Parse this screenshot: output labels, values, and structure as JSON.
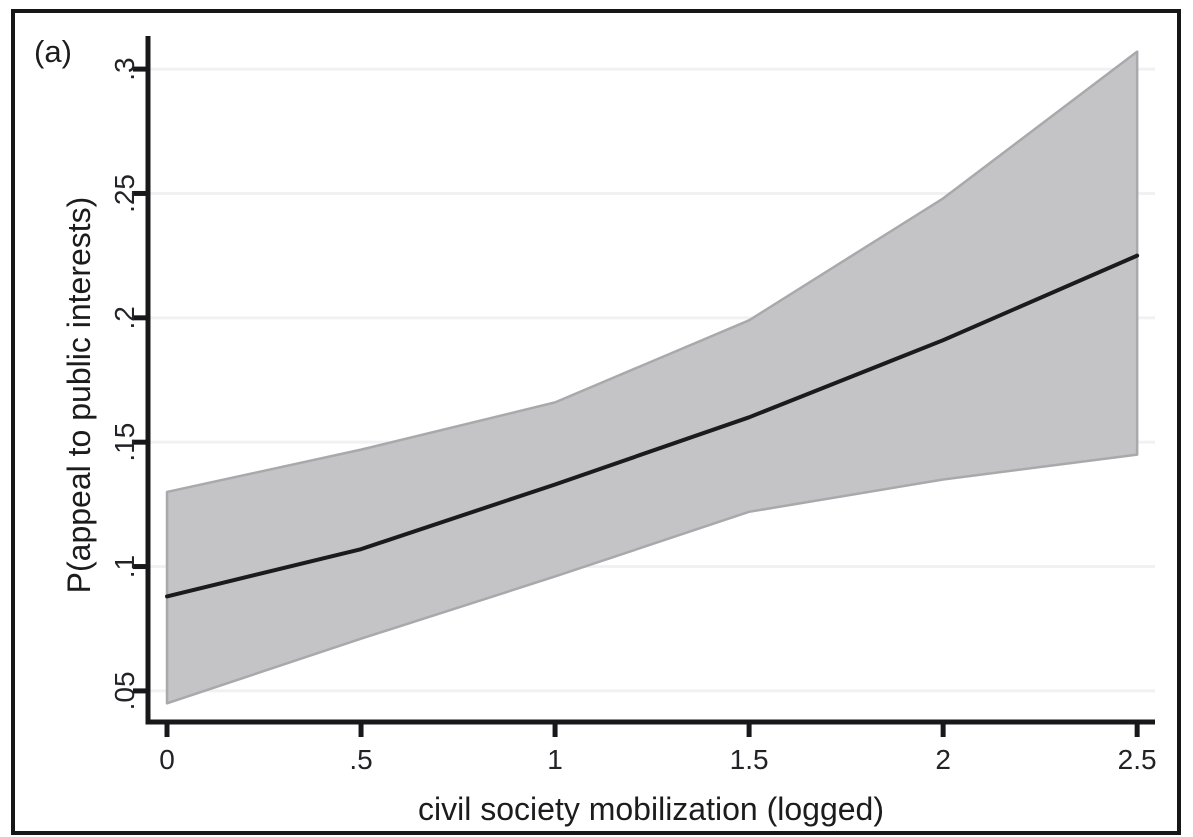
{
  "panel_label": "(a)",
  "chart_data": {
    "type": "line",
    "title": "",
    "xlabel": "civil society mobilization (logged)",
    "ylabel": "P(appeal to public interests)",
    "x": [
      0,
      0.5,
      1,
      1.5,
      2,
      2.5
    ],
    "line_values": [
      0.088,
      0.107,
      0.133,
      0.16,
      0.191,
      0.225
    ],
    "ci_upper": [
      0.13,
      0.147,
      0.166,
      0.199,
      0.248,
      0.307
    ],
    "ci_lower": [
      0.045,
      0.071,
      0.096,
      0.122,
      0.135,
      0.145
    ],
    "xticks": {
      "values": [
        0,
        0.5,
        1,
        1.5,
        2,
        2.5
      ],
      "labels": [
        "0",
        ".5",
        "1",
        "1.5",
        "2",
        "2.5"
      ]
    },
    "yticks": {
      "values": [
        0.05,
        0.1,
        0.15,
        0.2,
        0.25,
        0.3
      ],
      "labels": [
        ".05",
        ".1",
        ".15",
        ".2",
        ".25",
        ".3"
      ]
    },
    "xlim": [
      -0.049,
      2.546
    ],
    "ylim": [
      0.0375,
      0.3125
    ],
    "grid": "horizontal",
    "legend": "none",
    "colors": {
      "band_fill": "#c4c4c6",
      "band_edge": "#a9a9ad",
      "line": "#1b1b1f",
      "gridline": "#f1f1f1",
      "axis": "#18181a",
      "text": "#232327",
      "border": "#161616",
      "background": "#ffffff"
    }
  }
}
